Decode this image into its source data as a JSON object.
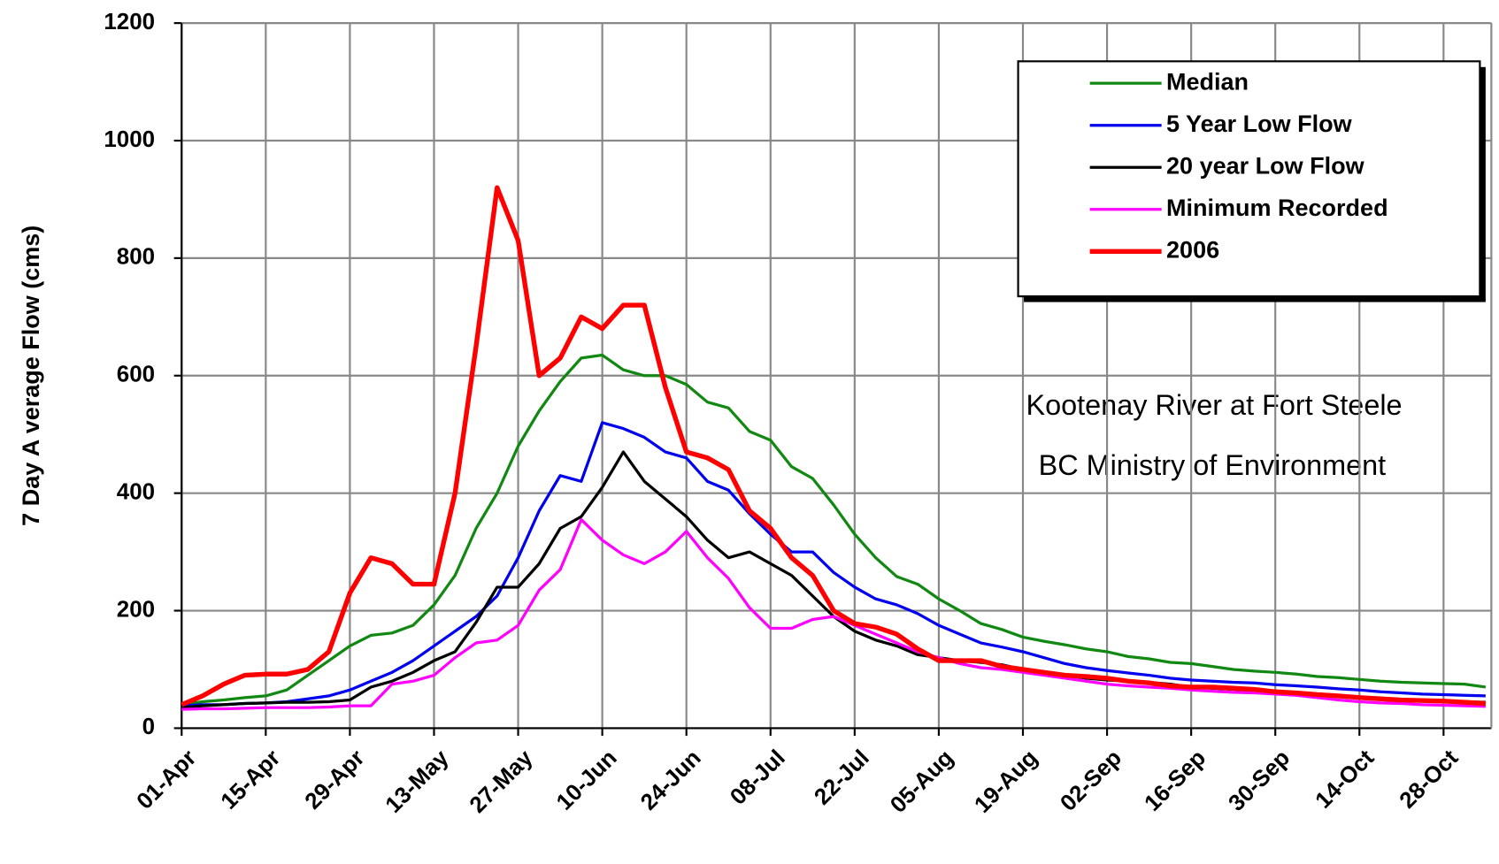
{
  "chart_data": {
    "type": "line",
    "y_label": "7 Day A verage Flow (cms)",
    "annotations": [
      "Kootenay River at Fort Steele",
      "BC Ministry of Environment"
    ],
    "categories": [
      "01-Apr",
      null,
      null,
      null,
      "15-Apr",
      null,
      null,
      null,
      "29-Apr",
      null,
      null,
      null,
      "13-May",
      null,
      null,
      null,
      "27-May",
      null,
      null,
      null,
      "10-Jun",
      null,
      null,
      null,
      "24-Jun",
      null,
      null,
      null,
      "08-Jul",
      null,
      null,
      null,
      "22-Jul",
      null,
      null,
      null,
      "05-Aug",
      null,
      null,
      null,
      "19-Aug",
      null,
      null,
      null,
      "02-Sep",
      null,
      null,
      null,
      "16-Sep",
      null,
      null,
      null,
      "30-Sep",
      null,
      null,
      null,
      "14-Oct",
      null,
      null,
      null,
      "28-Oct",
      null,
      null
    ],
    "ylim": [
      0,
      1200
    ],
    "yticks": [
      0,
      200,
      400,
      600,
      800,
      1000,
      1200
    ],
    "grid": true,
    "legend": "upper right",
    "series": [
      {
        "name": "Median",
        "color": "#118811",
        "width": 3,
        "values": [
          40,
          45,
          48,
          52,
          55,
          65,
          90,
          115,
          140,
          158,
          162,
          175,
          210,
          260,
          340,
          400,
          480,
          540,
          590,
          630,
          635,
          610,
          600,
          600,
          585,
          555,
          545,
          505,
          490,
          445,
          425,
          380,
          330,
          290,
          258,
          245,
          220,
          200,
          178,
          168,
          155,
          148,
          142,
          135,
          130,
          122,
          118,
          112,
          110,
          105,
          100,
          97,
          95,
          92,
          88,
          86,
          83,
          80,
          78,
          77,
          76,
          75,
          70
        ]
      },
      {
        "name": "5 Year Low Flow",
        "color": "#0000ee",
        "width": 3,
        "values": [
          38,
          40,
          40,
          42,
          43,
          45,
          50,
          55,
          65,
          80,
          95,
          115,
          140,
          165,
          190,
          225,
          290,
          370,
          430,
          420,
          520,
          510,
          495,
          470,
          460,
          420,
          405,
          365,
          330,
          300,
          300,
          265,
          240,
          220,
          210,
          195,
          175,
          160,
          145,
          138,
          130,
          120,
          110,
          103,
          98,
          94,
          90,
          85,
          82,
          80,
          78,
          77,
          74,
          72,
          70,
          67,
          65,
          62,
          60,
          58,
          57,
          56,
          55
        ]
      },
      {
        "name": "20 year Low Flow",
        "color": "#000000",
        "width": 3,
        "values": [
          35,
          38,
          40,
          42,
          43,
          44,
          44,
          45,
          48,
          70,
          80,
          95,
          115,
          130,
          180,
          240,
          240,
          280,
          340,
          360,
          410,
          470,
          420,
          390,
          360,
          320,
          290,
          300,
          280,
          260,
          225,
          190,
          165,
          150,
          140,
          125,
          120,
          115,
          112,
          108,
          100,
          95,
          90,
          85,
          82,
          80,
          78,
          75,
          70,
          68,
          66,
          64,
          62,
          60,
          58,
          55,
          52,
          50,
          48,
          47,
          46,
          45,
          44
        ]
      },
      {
        "name": "Minimum Recorded",
        "color": "#ff00ff",
        "width": 3,
        "values": [
          32,
          33,
          33,
          34,
          35,
          35,
          35,
          36,
          38,
          38,
          75,
          80,
          90,
          120,
          145,
          150,
          175,
          235,
          270,
          355,
          320,
          295,
          280,
          300,
          335,
          290,
          255,
          205,
          170,
          170,
          185,
          190,
          175,
          160,
          145,
          130,
          120,
          110,
          103,
          100,
          95,
          90,
          85,
          80,
          75,
          72,
          70,
          68,
          65,
          63,
          61,
          60,
          58,
          56,
          52,
          48,
          45,
          43,
          42,
          40,
          39,
          38,
          37
        ]
      },
      {
        "name": "2006",
        "color": "#ff0000",
        "width": 5,
        "values": [
          40,
          55,
          75,
          90,
          92,
          92,
          100,
          130,
          230,
          290,
          280,
          245,
          245,
          400,
          650,
          920,
          830,
          600,
          630,
          700,
          680,
          720,
          720,
          580,
          470,
          460,
          440,
          370,
          340,
          290,
          260,
          200,
          178,
          172,
          160,
          135,
          115,
          115,
          115,
          105,
          100,
          95,
          90,
          88,
          85,
          80,
          77,
          72,
          70,
          70,
          68,
          66,
          62,
          60,
          57,
          55,
          52,
          50,
          48,
          47,
          46,
          44,
          42
        ]
      }
    ]
  }
}
